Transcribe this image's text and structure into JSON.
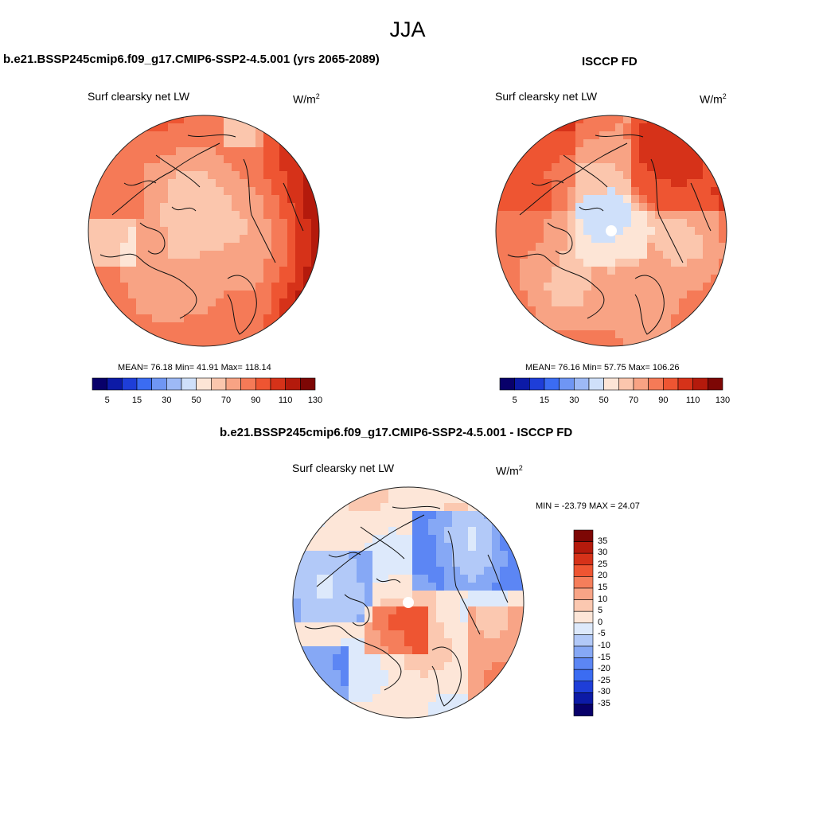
{
  "season": "JJA",
  "colors": {
    "abs_palette": [
      "#08006a",
      "#0c1aa6",
      "#1e3ed8",
      "#3b6cf2",
      "#6f96f4",
      "#9db9f6",
      "#cfe0fa",
      "#fde5d6",
      "#fbc6ad",
      "#f8a384",
      "#f57a57",
      "#ee5532",
      "#d63219",
      "#b41a0c",
      "#7d0705"
    ],
    "diff_palette": [
      "#08006a",
      "#0c1aa6",
      "#1e3ed8",
      "#3b6cf2",
      "#5c86f4",
      "#86a8f5",
      "#b2c9f8",
      "#dde9fb",
      "#fde6d8",
      "#fbc8b0",
      "#f8a486",
      "#f57e5b",
      "#ee5532",
      "#d63219",
      "#b41a0c",
      "#7d0705"
    ],
    "land": "#fde4d3",
    "coast": "#111111"
  },
  "panels": [
    {
      "title": "b.e21.BSSP245cmip6.f09_g17.CMIP6-SSP2-4.5.001 (yrs 2065-2089)",
      "subtitle": "Surf clearsky net LW",
      "units": "W/m",
      "units_sup": "2",
      "stats_text": "MEAN=  76.18  Min=  41.91  Max= 118.14",
      "field": "model"
    },
    {
      "title": "ISCCP FD",
      "subtitle": "Surf clearsky net LW",
      "units": "W/m",
      "units_sup": "2",
      "stats_text": "MEAN=  76.16  Min=  57.75  Max= 106.26",
      "field": "obs"
    },
    {
      "title": "b.e21.BSSP245cmip6.f09_g17.CMIP6-SSP2-4.5.001 - ISCCP FD",
      "subtitle": "Surf clearsky net LW",
      "units": "W/m",
      "units_sup": "2",
      "stats_text": "MIN = -23.79 MAX =  24.07",
      "field": "diff"
    }
  ],
  "chart_data": [
    {
      "type": "heatmap",
      "projection": "north-polar-stereographic",
      "title": "b.e21.BSSP245cmip6.f09_g17.CMIP6-SSP2-4.5.001 (yrs 2065-2089)",
      "variable": "Surf clearsky net LW",
      "units": "W/m2",
      "mean": 76.18,
      "min": 41.91,
      "max": 118.14,
      "colorbar_levels": [
        5,
        15,
        30,
        50,
        70,
        90,
        110,
        130
      ],
      "colorbar_ticks": [
        "5",
        "15",
        "30",
        "50",
        "70",
        "90",
        "110",
        "130"
      ]
    },
    {
      "type": "heatmap",
      "projection": "north-polar-stereographic",
      "title": "ISCCP FD",
      "variable": "Surf clearsky net LW",
      "units": "W/m2",
      "mean": 76.16,
      "min": 57.75,
      "max": 106.26,
      "colorbar_levels": [
        5,
        15,
        30,
        50,
        70,
        90,
        110,
        130
      ],
      "colorbar_ticks": [
        "5",
        "15",
        "30",
        "50",
        "70",
        "90",
        "110",
        "130"
      ]
    },
    {
      "type": "heatmap",
      "projection": "north-polar-stereographic",
      "title": "b.e21.BSSP245cmip6.f09_g17.CMIP6-SSP2-4.5.001 - ISCCP FD",
      "variable": "Surf clearsky net LW",
      "units": "W/m2",
      "min": -23.79,
      "max": 24.07,
      "colorbar_levels": [
        35,
        30,
        25,
        20,
        15,
        10,
        5,
        0,
        -5,
        -10,
        -15,
        -20,
        -25,
        -30,
        -35
      ],
      "colorbar_ticks": [
        "35",
        "30",
        "25",
        "20",
        "15",
        "10",
        "5",
        "0",
        "-5",
        "-10",
        "-15",
        "-20",
        "-25",
        "-30",
        "-35"
      ]
    }
  ]
}
